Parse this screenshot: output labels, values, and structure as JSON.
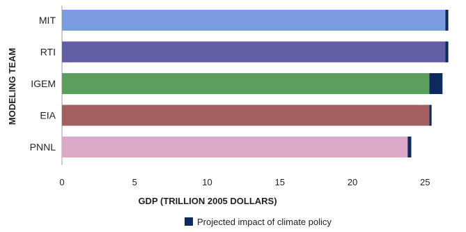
{
  "chart_data": {
    "type": "bar",
    "orientation": "horizontal",
    "stacked": true,
    "categories": [
      "MIT",
      "RTI",
      "IGEM",
      "EIA",
      "PNNL"
    ],
    "series": [
      {
        "name": "",
        "values": [
          26.4,
          26.4,
          25.3,
          25.3,
          23.8
        ],
        "colors": [
          "#7b9be0",
          "#635fa6",
          "#5b9e5d",
          "#a55f60",
          "#dba8c8"
        ]
      },
      {
        "name": "Projected impact of climate policy",
        "values": [
          0.2,
          0.2,
          0.9,
          0.15,
          0.25
        ],
        "color": "#0f2a5e"
      }
    ],
    "xlabel": "GDP (TRILLION 2005 DOLLARS)",
    "ylabel": "MODELING TEAM",
    "xlim": [
      0,
      28
    ],
    "xticks": [
      "0",
      "5",
      "10",
      "15",
      "20",
      "25"
    ],
    "grid": false,
    "legend": "bottom-center"
  }
}
